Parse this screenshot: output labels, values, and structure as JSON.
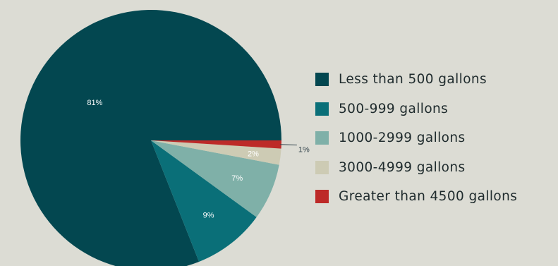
{
  "chart_data": {
    "type": "pie",
    "categories": [
      "Less than 500 gallons",
      "500-999 gallons",
      "1000-2999 gallons",
      "3000-4999 gallons",
      "Greater than 4500 gallons"
    ],
    "values": [
      81,
      9,
      7,
      2,
      1
    ],
    "value_labels": [
      "81%",
      "9%",
      "7%",
      "2%",
      "1%"
    ],
    "colors": [
      "#034750",
      "#0a6f78",
      "#7fb0a8",
      "#cdcbb4",
      "#bd2a28"
    ],
    "legend_position": "right",
    "title": "",
    "start_angle_deg": 0,
    "direction": "counterclockwise-from-east"
  }
}
